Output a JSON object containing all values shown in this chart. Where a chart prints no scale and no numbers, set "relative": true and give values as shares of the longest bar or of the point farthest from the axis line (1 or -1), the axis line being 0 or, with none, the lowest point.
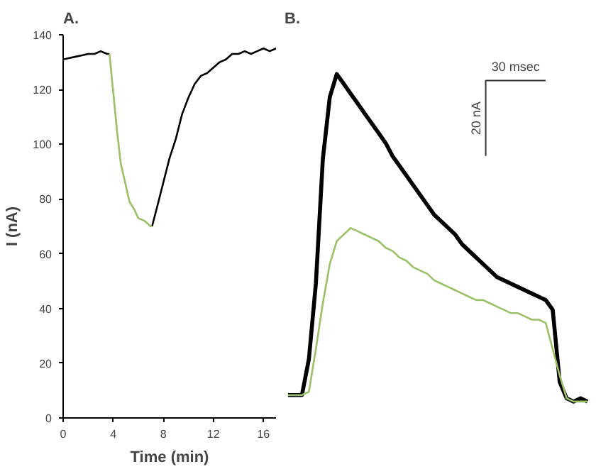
{
  "chart_data": [
    {
      "type": "line",
      "title": "A.",
      "xlabel": "Time (min)",
      "ylabel": "I (nA)",
      "xlim": [
        0,
        17
      ],
      "xticks": [
        0,
        4,
        8,
        12,
        16
      ],
      "ylim": [
        0,
        140
      ],
      "yticks": [
        0,
        20,
        40,
        60,
        80,
        100,
        120,
        140
      ],
      "grid": false,
      "series": [
        {
          "color": "#000000",
          "x": [
            0,
            0.5,
            1,
            1.5,
            2,
            2.5,
            3,
            3.5,
            3.7,
            5,
            7.1,
            7.5,
            8,
            8.5,
            9,
            9.5,
            10,
            10.5,
            11,
            11.5,
            12,
            12.5,
            13,
            13.5,
            14,
            14.5,
            15,
            15.5,
            16,
            16.5,
            17
          ],
          "values": [
            131,
            131.5,
            132,
            132.5,
            133,
            133,
            134,
            133,
            133,
            null,
            70,
            77,
            86,
            95,
            102,
            111,
            117,
            122,
            125,
            126,
            128,
            130,
            131,
            133,
            133,
            134,
            133,
            134,
            135,
            134,
            135
          ]
        },
        {
          "color": "#9dbf6a",
          "x": [
            3.7,
            4,
            4.3,
            4.6,
            5,
            5.3,
            5.7,
            6,
            6.5,
            7,
            7.1
          ],
          "values": [
            133,
            119,
            105,
            93,
            85,
            79,
            76,
            73,
            72,
            70,
            70
          ]
        }
      ]
    },
    {
      "type": "line",
      "title": "B.",
      "relative": true,
      "annotations": [
        "30 msec",
        "20 nA"
      ],
      "categories": [
        null,
        null,
        null,
        null,
        null,
        null,
        null,
        null,
        null,
        null,
        null,
        null,
        null,
        null,
        null,
        null,
        null,
        null,
        null,
        null,
        null,
        null,
        null,
        null,
        null,
        null,
        null,
        null,
        null,
        null,
        null,
        null,
        null,
        null,
        null,
        null,
        null,
        null,
        null,
        null,
        null,
        null,
        null,
        null
      ],
      "series": [
        {
          "color": "#000000",
          "values": [
            0.02,
            0.02,
            0.02,
            0.13,
            0.36,
            0.74,
            0.93,
            1.0,
            0.97,
            0.94,
            0.91,
            0.88,
            0.85,
            0.82,
            0.79,
            0.75,
            0.72,
            0.69,
            0.66,
            0.63,
            0.6,
            0.57,
            0.55,
            0.53,
            0.51,
            0.48,
            0.46,
            0.44,
            0.42,
            0.4,
            0.38,
            0.37,
            0.36,
            0.35,
            0.34,
            0.33,
            0.32,
            0.31,
            0.28,
            0.06,
            0.01,
            0.0,
            0.01,
            0.0
          ]
        },
        {
          "color": "#9dbf6a",
          "values": [
            0.02,
            0.02,
            0.02,
            0.03,
            0.16,
            0.3,
            0.42,
            0.49,
            0.51,
            0.53,
            0.52,
            0.51,
            0.5,
            0.49,
            0.47,
            0.46,
            0.44,
            0.43,
            0.41,
            0.4,
            0.39,
            0.37,
            0.36,
            0.35,
            0.34,
            0.33,
            0.32,
            0.31,
            0.31,
            0.3,
            0.29,
            0.28,
            0.27,
            0.27,
            0.26,
            0.25,
            0.25,
            0.24,
            0.16,
            0.08,
            0.01,
            0.0,
            0.0,
            0.0
          ]
        }
      ]
    }
  ]
}
